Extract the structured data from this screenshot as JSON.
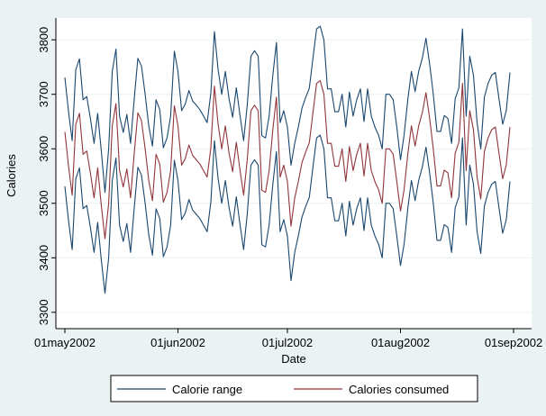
{
  "chart_data": {
    "type": "line",
    "title": "",
    "xlabel": "Date",
    "ylabel": "Calories",
    "x_tick_labels": [
      "01may2002",
      "01jun2002",
      "01jul2002",
      "01aug2002",
      "01sep2002"
    ],
    "y_tick_labels": [
      "3300",
      "3400",
      "3500",
      "3600",
      "3700",
      "3800"
    ],
    "xlim": [
      "2002-05-01",
      "2002-09-01"
    ],
    "ylim": [
      3270,
      3840
    ],
    "grid": "horizontal",
    "legend_position": "bottom",
    "x": [
      "2002-05-01",
      "2002-05-02",
      "2002-05-03",
      "2002-05-04",
      "2002-05-05",
      "2002-05-06",
      "2002-05-07",
      "2002-05-08",
      "2002-05-09",
      "2002-05-10",
      "2002-05-11",
      "2002-05-12",
      "2002-05-13",
      "2002-05-14",
      "2002-05-15",
      "2002-05-16",
      "2002-05-17",
      "2002-05-18",
      "2002-05-19",
      "2002-05-20",
      "2002-05-21",
      "2002-05-22",
      "2002-05-23",
      "2002-05-24",
      "2002-05-25",
      "2002-05-26",
      "2002-05-27",
      "2002-05-28",
      "2002-05-29",
      "2002-05-30",
      "2002-05-31",
      "2002-06-01",
      "2002-06-02",
      "2002-06-03",
      "2002-06-04",
      "2002-06-05",
      "2002-06-06",
      "2002-06-07",
      "2002-06-08",
      "2002-06-09",
      "2002-06-10",
      "2002-06-11",
      "2002-06-12",
      "2002-06-13",
      "2002-06-14",
      "2002-06-15",
      "2002-06-16",
      "2002-06-17",
      "2002-06-18",
      "2002-06-19",
      "2002-06-20",
      "2002-06-21",
      "2002-06-22",
      "2002-06-23",
      "2002-06-24",
      "2002-06-25",
      "2002-06-26",
      "2002-06-27",
      "2002-06-28",
      "2002-06-29",
      "2002-06-30",
      "2002-07-01",
      "2002-07-02",
      "2002-07-03",
      "2002-07-04",
      "2002-07-05",
      "2002-07-06",
      "2002-07-07",
      "2002-07-08",
      "2002-07-09",
      "2002-07-10",
      "2002-07-11",
      "2002-07-12",
      "2002-07-13",
      "2002-07-14",
      "2002-07-15",
      "2002-07-16",
      "2002-07-17",
      "2002-07-18",
      "2002-07-19",
      "2002-07-20",
      "2002-07-21",
      "2002-07-22",
      "2002-07-23",
      "2002-07-24",
      "2002-07-25",
      "2002-07-26",
      "2002-07-27",
      "2002-07-28",
      "2002-07-29",
      "2002-07-30",
      "2002-07-31",
      "2002-08-01",
      "2002-08-02",
      "2002-08-03",
      "2002-08-04",
      "2002-08-05",
      "2002-08-06",
      "2002-08-07",
      "2002-08-08",
      "2002-08-09",
      "2002-08-10",
      "2002-08-11",
      "2002-08-12",
      "2002-08-13",
      "2002-08-14",
      "2002-08-15",
      "2002-08-16",
      "2002-08-17",
      "2002-08-18",
      "2002-08-19",
      "2002-08-20",
      "2002-08-21",
      "2002-08-22",
      "2002-08-23",
      "2002-08-24",
      "2002-08-25",
      "2002-08-26",
      "2002-08-27",
      "2002-08-28",
      "2002-08-29",
      "2002-08-30",
      "2002-08-31"
    ],
    "series": [
      {
        "name": "Calorie range",
        "color": "#1a476f",
        "values": [
          3731,
          3669,
          3615,
          3745,
          3765,
          3690,
          3696,
          3656,
          3610,
          3665,
          3595,
          3520,
          3600,
          3742,
          3783,
          3660,
          3630,
          3663,
          3610,
          3690,
          3766,
          3752,
          3700,
          3642,
          3605,
          3690,
          3672,
          3602,
          3620,
          3660,
          3779,
          3742,
          3670,
          3682,
          3707,
          3688,
          3680,
          3672,
          3660,
          3648,
          3702,
          3815,
          3746,
          3700,
          3742,
          3692,
          3658,
          3712,
          3662,
          3615,
          3680,
          3770,
          3780,
          3770,
          3624,
          3620,
          3660,
          3735,
          3795,
          3648,
          3670,
          3640,
          3570,
          3610,
          3640,
          3675,
          3694,
          3711,
          3766,
          3820,
          3825,
          3800,
          3710,
          3710,
          3668,
          3668,
          3700,
          3640,
          3704,
          3660,
          3690,
          3710,
          3650,
          3710,
          3660,
          3640,
          3625,
          3600,
          3700,
          3700,
          3690,
          3640,
          3580,
          3625,
          3690,
          3742,
          3705,
          3742,
          3767,
          3803,
          3755,
          3700,
          3632,
          3632,
          3661,
          3656,
          3610,
          3692,
          3712,
          3820,
          3660,
          3770,
          3735,
          3648,
          3600,
          3695,
          3720,
          3735,
          3740,
          3692,
          3645,
          3670,
          3740
        ]
      },
      {
        "name": "",
        "color": "#1a476f",
        "values": [
          3531,
          3469,
          3415,
          3545,
          3565,
          3490,
          3496,
          3456,
          3410,
          3465,
          3395,
          3335,
          3400,
          3542,
          3583,
          3460,
          3430,
          3463,
          3410,
          3490,
          3566,
          3552,
          3500,
          3442,
          3405,
          3490,
          3472,
          3402,
          3420,
          3460,
          3579,
          3542,
          3470,
          3482,
          3507,
          3488,
          3480,
          3472,
          3460,
          3448,
          3502,
          3615,
          3546,
          3500,
          3542,
          3492,
          3458,
          3512,
          3462,
          3415,
          3480,
          3570,
          3580,
          3570,
          3424,
          3420,
          3460,
          3535,
          3595,
          3448,
          3470,
          3440,
          3358,
          3410,
          3440,
          3475,
          3494,
          3511,
          3566,
          3620,
          3625,
          3600,
          3510,
          3510,
          3468,
          3468,
          3500,
          3440,
          3504,
          3460,
          3490,
          3510,
          3450,
          3510,
          3460,
          3440,
          3425,
          3400,
          3500,
          3500,
          3490,
          3440,
          3386,
          3425,
          3490,
          3542,
          3505,
          3542,
          3567,
          3603,
          3555,
          3500,
          3432,
          3432,
          3461,
          3456,
          3410,
          3492,
          3512,
          3620,
          3460,
          3570,
          3535,
          3448,
          3408,
          3495,
          3520,
          3535,
          3540,
          3492,
          3445,
          3470,
          3540
        ]
      },
      {
        "name": "Calories consumed",
        "color": "#90353b",
        "values": [
          3631,
          3569,
          3515,
          3645,
          3665,
          3590,
          3596,
          3556,
          3510,
          3565,
          3495,
          3435,
          3500,
          3642,
          3683,
          3560,
          3530,
          3563,
          3510,
          3590,
          3666,
          3652,
          3600,
          3542,
          3505,
          3590,
          3572,
          3502,
          3520,
          3560,
          3679,
          3642,
          3570,
          3582,
          3607,
          3588,
          3580,
          3572,
          3560,
          3548,
          3602,
          3715,
          3646,
          3600,
          3642,
          3592,
          3558,
          3612,
          3562,
          3515,
          3580,
          3670,
          3680,
          3670,
          3524,
          3520,
          3560,
          3635,
          3695,
          3548,
          3570,
          3540,
          3458,
          3510,
          3540,
          3575,
          3594,
          3611,
          3666,
          3720,
          3725,
          3700,
          3610,
          3610,
          3568,
          3568,
          3600,
          3540,
          3604,
          3560,
          3590,
          3610,
          3550,
          3610,
          3560,
          3540,
          3525,
          3500,
          3600,
          3600,
          3590,
          3540,
          3486,
          3525,
          3590,
          3642,
          3605,
          3642,
          3667,
          3703,
          3655,
          3600,
          3532,
          3532,
          3561,
          3556,
          3510,
          3592,
          3612,
          3720,
          3560,
          3670,
          3635,
          3548,
          3508,
          3595,
          3620,
          3635,
          3640,
          3592,
          3545,
          3570,
          3640
        ]
      }
    ],
    "legend": [
      {
        "label": "Calorie range",
        "color": "#1a476f"
      },
      {
        "label": "Calories consumed",
        "color": "#90353b"
      }
    ]
  }
}
